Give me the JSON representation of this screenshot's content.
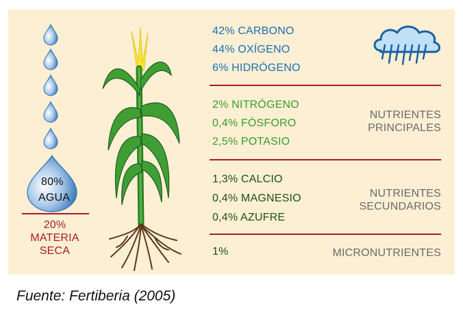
{
  "water": {
    "percent": "80%",
    "label": "AGUA"
  },
  "dry_matter": {
    "percent": "20%",
    "line1": "MATERIA",
    "line2": "SECA"
  },
  "groups": {
    "structural": {
      "items": [
        "42% CARBONO",
        "44% OXÍGENO",
        "6% HIDRÓGENO"
      ],
      "icon": "rain-cloud-icon"
    },
    "primary": {
      "items": [
        "2% NITRÓGENO",
        "0,4% FÓSFORO",
        "2,5% POTASIO"
      ],
      "label_line1": "NUTRIENTES",
      "label_line2": "PRINCIPALES"
    },
    "secondary": {
      "items": [
        "1,3% CALCIO",
        "0,4% MAGNESIO",
        "0,4% AZUFRE"
      ],
      "label_line1": "NUTRIENTES",
      "label_line2": "SECUNDARIOS"
    },
    "micro": {
      "items": [
        "1%"
      ],
      "label": "MICRONUTRIENTES"
    }
  },
  "source": "Fuente: Fertiberia (2005)",
  "colors": {
    "structural": "#1b6fb1",
    "primary": "#3b9c2f",
    "secondary": "#1f4f1a",
    "rule": "#a8192e",
    "background": "#fcefd3"
  }
}
